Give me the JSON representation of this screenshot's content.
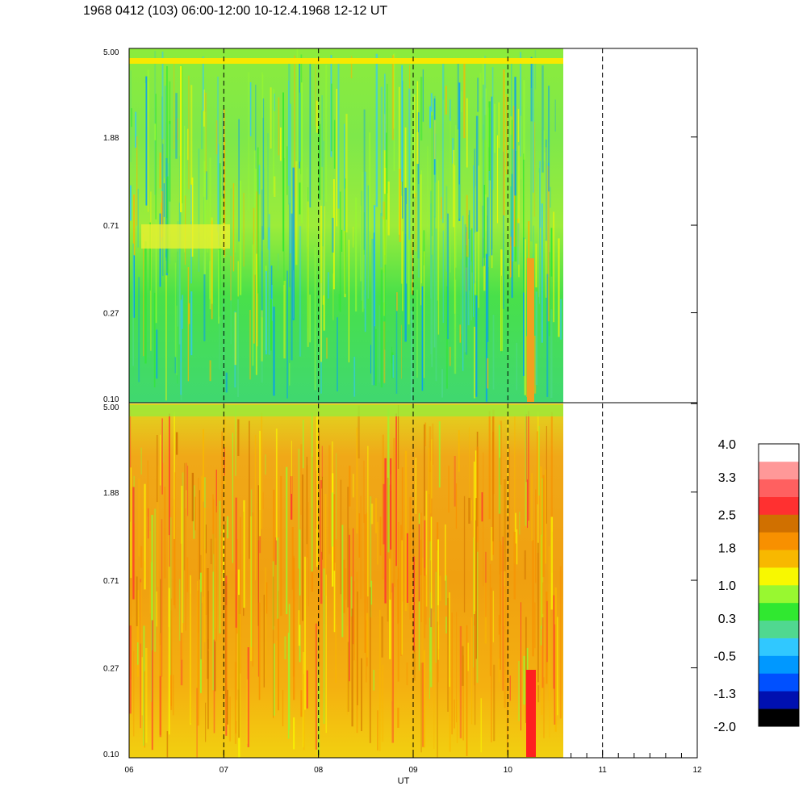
{
  "title": "1968 0412 (103) 06:00-12:00 10-12.4.1968  12-12 UT",
  "chart_data": [
    {
      "type": "heatmap",
      "panel": "top",
      "x_axis": {
        "label": "UT",
        "range": [
          6,
          12
        ],
        "data_end": 10.57
      },
      "y_axis": {
        "scale": "log",
        "range": [
          0.1,
          5.0
        ],
        "ticks": [
          "5.00",
          "1.88",
          "0.71",
          "0.27",
          "0.10"
        ]
      },
      "dominant_level_range": [
        0.0,
        1.2
      ],
      "bright_horizontal_band_at": 4.5,
      "dashed_hour_lines": [
        7,
        8,
        9,
        10,
        11
      ]
    },
    {
      "type": "heatmap",
      "panel": "bottom",
      "x_axis": {
        "label": "UT",
        "range": [
          6,
          12
        ],
        "data_end": 10.57,
        "ticks": [
          "06",
          "07",
          "08",
          "09",
          "10",
          "11",
          "12"
        ]
      },
      "y_axis": {
        "scale": "log",
        "range": [
          0.1,
          5.0
        ],
        "ticks": [
          "5.00",
          "1.88",
          "0.71",
          "0.27",
          "0.10"
        ]
      },
      "dominant_level_range": [
        1.0,
        2.5
      ],
      "dashed_hour_lines": [
        7,
        8,
        9,
        10,
        11
      ]
    }
  ],
  "colorbar": {
    "labels": [
      "4.0",
      "3.3",
      "2.5",
      "1.8",
      "1.0",
      "0.3",
      "-0.5",
      "-1.3",
      "-2.0"
    ],
    "range": [
      -2.0,
      4.0
    ],
    "colors": [
      "#000000",
      "#0010b0",
      "#0050ff",
      "#0098ff",
      "#30c8ff",
      "#50d890",
      "#30e830",
      "#98f830",
      "#f8f800",
      "#f8b800",
      "#f89000",
      "#d07000",
      "#ff3030",
      "#ff6060",
      "#ff9898",
      "#ffffff"
    ]
  },
  "xlabel": "UT"
}
